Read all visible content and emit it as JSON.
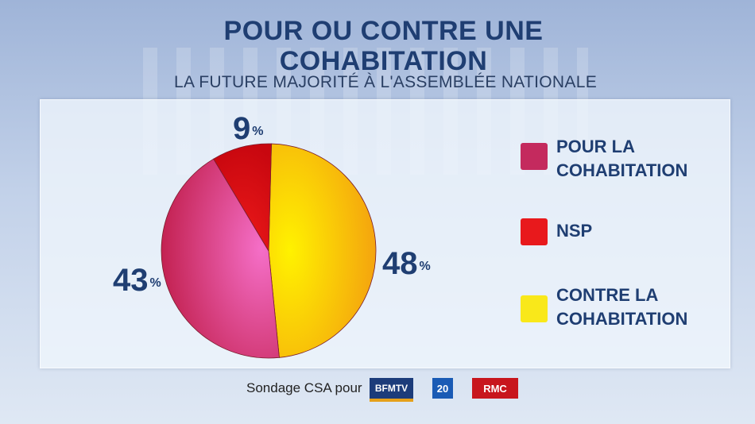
{
  "header": {
    "title_line1": "POUR OU CONTRE UNE",
    "title_line2": "COHABITATION",
    "subtitle": "LA FUTURE MAJORITÉ À L'ASSEMBLÉE NATIONALE"
  },
  "chart_data": {
    "type": "pie",
    "title": "POUR OU CONTRE UNE COHABITATION",
    "subtitle": "LA FUTURE MAJORITÉ À L'ASSEMBLÉE NATIONALE",
    "slices": [
      {
        "label": "CONTRE LA COHABITATION",
        "value": 48,
        "display": "48",
        "color": "#f7b500"
      },
      {
        "label": "POUR LA COHABITATION",
        "value": 43,
        "display": "43",
        "color": "#c42a5e"
      },
      {
        "label": "NSP",
        "value": 9,
        "display": "9",
        "color": "#d9121e"
      }
    ],
    "unit": "%",
    "legend_position": "right"
  },
  "legend": [
    {
      "label_line1": "POUR LA",
      "label_line2": "COHABITATION",
      "color": "#c42a5e"
    },
    {
      "label_line1": "NSP",
      "label_line2": "",
      "color": "#e8191c"
    },
    {
      "label_line1": "CONTRE LA",
      "label_line2": "COHABITATION",
      "color": "#f9e81a"
    }
  ],
  "footer": {
    "source": "Sondage CSA pour",
    "logos": [
      {
        "name": "bfmtv-logo",
        "text": "BFMTV"
      },
      {
        "name": "20minutes-logo",
        "text": "20"
      },
      {
        "name": "rmc-logo",
        "text": "RMC"
      }
    ]
  }
}
